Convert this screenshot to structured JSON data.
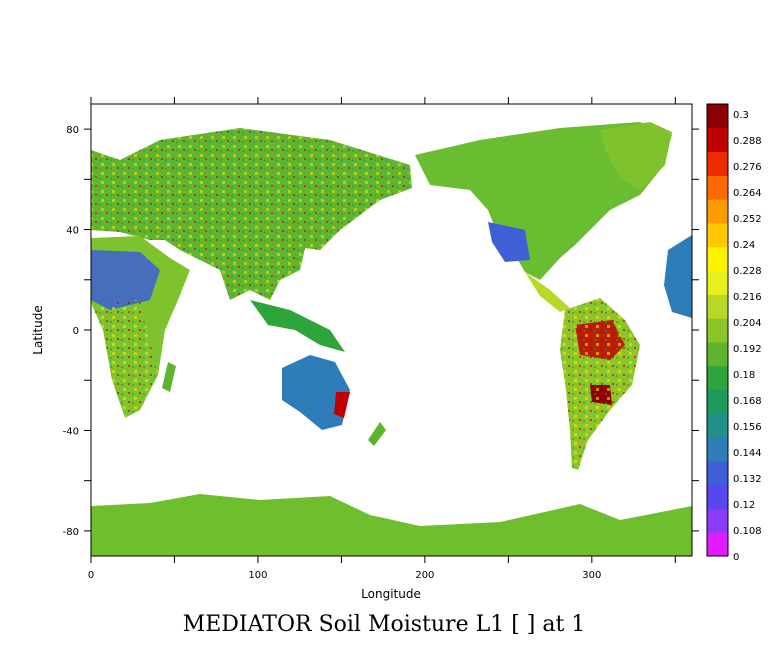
{
  "chart_data": {
    "type": "heatmap",
    "title": "MEDIATOR Soil Moisture L1 [ ] at 1",
    "xlabel": "Longitude",
    "ylabel": "Latitude",
    "xlim": [
      0,
      360
    ],
    "ylim": [
      -90,
      90
    ],
    "x_ticks": [
      0,
      100,
      200,
      300
    ],
    "y_ticks": [
      -80,
      -40,
      0,
      40,
      80
    ],
    "colorbar": {
      "labels": [
        "0",
        "0.108",
        "0.12",
        "0.132",
        "0.144",
        "0.156",
        "0.168",
        "0.18",
        "0.192",
        "0.204",
        "0.216",
        "0.228",
        "0.24",
        "0.252",
        "0.264",
        "0.276",
        "0.288",
        "0.3"
      ],
      "colors": [
        "#e01cff",
        "#8a3cf8",
        "#5a46f0",
        "#3f5fd6",
        "#2e7cb8",
        "#22918c",
        "#1d9a5a",
        "#2ea53a",
        "#5db42e",
        "#8cc52a",
        "#b8d828",
        "#e8f01c",
        "#fff200",
        "#ffc800",
        "#ff9a00",
        "#ff6a00",
        "#ee2a00",
        "#c00000",
        "#8b0000"
      ]
    }
  }
}
